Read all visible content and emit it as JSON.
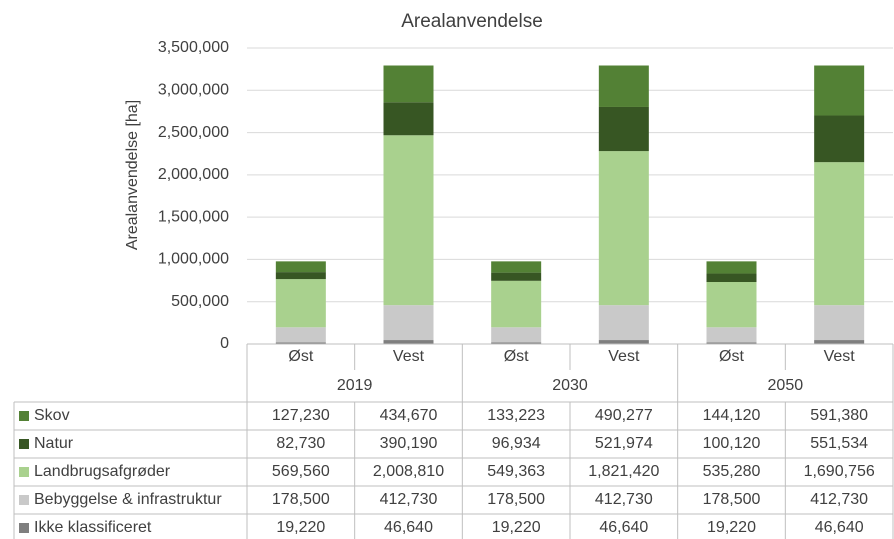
{
  "chart_data": {
    "type": "stacked_bar",
    "title": "Arealanvendelse",
    "y_label": "Arealanvendelse [ha]",
    "categories": [
      "Øst",
      "Vest",
      "Øst",
      "Vest",
      "Øst",
      "Vest"
    ],
    "groups": [
      "2019",
      "2030",
      "2050"
    ],
    "series": [
      {
        "name": "Skov",
        "color": "#538135",
        "values": [
          127230,
          434670,
          133223,
          490277,
          144120,
          591380
        ],
        "value_labels": [
          "127,230",
          "434,670",
          "133,223",
          "490,277",
          "144,120",
          "591,380"
        ]
      },
      {
        "name": "Natur",
        "color": "#375623",
        "values": [
          82730,
          390190,
          96934,
          521974,
          100120,
          551534
        ],
        "value_labels": [
          "82,730",
          "390,190",
          "96,934",
          "521,974",
          "100,120",
          "551,534"
        ]
      },
      {
        "name": "Landbrugsafgrøder",
        "color": "#a9d18e",
        "values": [
          569560,
          2008810,
          549363,
          1821420,
          535280,
          1690756
        ],
        "value_labels": [
          "569,560",
          "2,008,810",
          "549,363",
          "1,821,420",
          "535,280",
          "1,690,756"
        ]
      },
      {
        "name": "Bebyggelse & infrastruktur",
        "color": "#c9c9c9",
        "values": [
          178500,
          412730,
          178500,
          412730,
          178500,
          412730
        ],
        "value_labels": [
          "178,500",
          "412,730",
          "178,500",
          "412,730",
          "178,500",
          "412,730"
        ]
      },
      {
        "name": "Ikke klassificeret",
        "color": "#7f7f7f",
        "values": [
          19220,
          46640,
          19220,
          46640,
          19220,
          46640
        ],
        "value_labels": [
          "19,220",
          "46,640",
          "19,220",
          "46,640",
          "19,220",
          "46,640"
        ]
      }
    ],
    "ylim": [
      0,
      3500000
    ],
    "yticks": [
      0,
      {
        "value": 500000,
        "label": "500,000"
      },
      {
        "value": 1000000,
        "label": "1,000,000"
      },
      {
        "value": 1500000,
        "label": "1,500,000"
      },
      {
        "value": 2000000,
        "label": "2,000,000"
      },
      {
        "value": 2500000,
        "label": "2,500,000"
      },
      {
        "value": 3000000,
        "label": "3,000,000"
      },
      {
        "value": 3500000,
        "label": "3,500,000"
      }
    ],
    "grid": true
  }
}
